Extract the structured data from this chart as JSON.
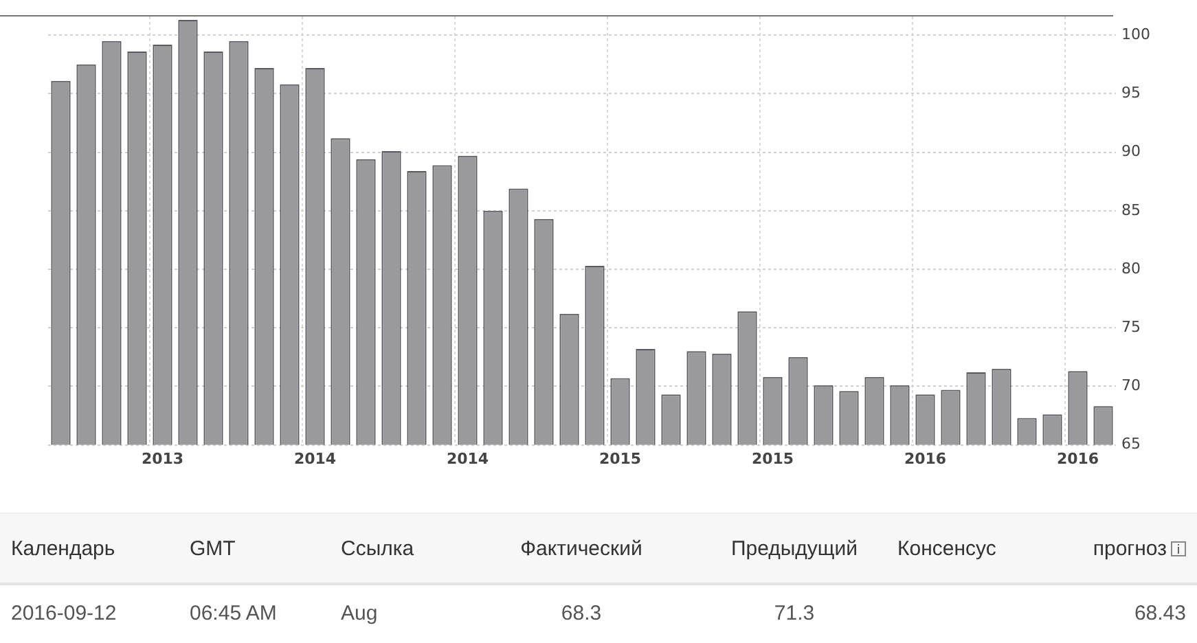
{
  "chart_data": {
    "type": "bar",
    "categories": [
      null,
      null,
      null,
      null,
      "2013",
      null,
      null,
      null,
      null,
      null,
      "2014",
      null,
      null,
      null,
      null,
      null,
      "2014",
      null,
      null,
      null,
      null,
      null,
      "2015",
      null,
      null,
      null,
      null,
      null,
      "2015",
      null,
      null,
      null,
      null,
      null,
      "2016",
      null,
      null,
      null,
      null,
      null,
      "2016",
      null
    ],
    "values": [
      96.1,
      97.5,
      99.5,
      98.6,
      99.2,
      101.3,
      98.6,
      99.5,
      97.2,
      95.8,
      97.2,
      91.2,
      89.4,
      90.1,
      88.4,
      88.9,
      89.7,
      85.0,
      86.9,
      84.3,
      76.2,
      80.3,
      70.7,
      73.2,
      69.3,
      73.0,
      72.8,
      76.4,
      70.8,
      72.5,
      70.1,
      69.6,
      70.8,
      70.1,
      69.3,
      69.7,
      71.2,
      71.5,
      67.3,
      67.6,
      71.3,
      68.3
    ],
    "color": "#9a9a9e",
    "ylim": [
      65,
      101.6
    ],
    "yticks": [
      65,
      70,
      75,
      80,
      85,
      90,
      95,
      100
    ],
    "grid": true,
    "legend": false,
    "annotations": [
      "Календарь",
      "GMT",
      "Ссылка",
      "Фактический",
      "Предыдущий",
      "Консенсус",
      "прогноз",
      "2016-09-12",
      "06:45 AM",
      "Aug",
      "68.3",
      "71.3",
      "68.43"
    ]
  }
}
